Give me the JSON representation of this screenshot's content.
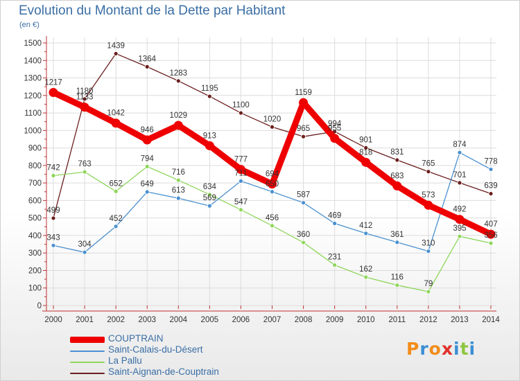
{
  "header": {
    "title": "Evolution du Montant de la Dette par Habitant",
    "unit": "(en €)"
  },
  "logo": {
    "text": "Proxiti",
    "letters": [
      {
        "ch": "P",
        "color": "#f28c1a"
      },
      {
        "ch": "r",
        "color": "#3a8fd4"
      },
      {
        "ch": "o",
        "color": "#f28c1a"
      },
      {
        "ch": "x",
        "color": "#e0322b"
      },
      {
        "ch": "i",
        "color": "#3a8fd4"
      },
      {
        "ch": "t",
        "color": "#8dc63f"
      },
      {
        "ch": "i",
        "color": "#3a8fd4"
      }
    ]
  },
  "chart_data": {
    "type": "line",
    "title": "Evolution du Montant de la Dette par Habitant",
    "ylabel": "(en €)",
    "xlabel": "",
    "x": [
      "2000",
      "2001",
      "2002",
      "2003",
      "2004",
      "2005",
      "2006",
      "2007",
      "2008",
      "2009",
      "2010",
      "2011",
      "2012",
      "2013",
      "2014"
    ],
    "ylim": [
      0,
      1500
    ],
    "yticks": [
      0,
      100,
      200,
      300,
      400,
      500,
      600,
      700,
      800,
      900,
      1000,
      1100,
      1200,
      1300,
      1400,
      1500
    ],
    "grid": true,
    "legend_position": "bottom-left",
    "series": [
      {
        "name": "Saint-Aignan-de-Couptrain",
        "color": "#6b1d1d",
        "values": [
          499,
          1180,
          1439,
          1364,
          1283,
          1195,
          1100,
          1020,
          965,
          994,
          901,
          831,
          765,
          701,
          639
        ]
      },
      {
        "name": "La Pallu",
        "color": "#8ed65a",
        "values": [
          742,
          763,
          652,
          794,
          716,
          634,
          547,
          456,
          360,
          231,
          162,
          116,
          79,
          395,
          356
        ]
      },
      {
        "name": "Saint-Calais-du-Désert",
        "color": "#4a90d0",
        "values": [
          343,
          304,
          452,
          649,
          613,
          569,
          711,
          650,
          587,
          469,
          412,
          361,
          310,
          874,
          778
        ]
      },
      {
        "name": "COUPTRAIN",
        "color": "#ee0000",
        "values": [
          1217,
          1133,
          1042,
          946,
          1029,
          913,
          777,
          694,
          1159,
          955,
          818,
          683,
          573,
          492,
          407
        ]
      }
    ],
    "legend": [
      "COUPTRAIN",
      "Saint-Calais-du-Désert",
      "La Pallu",
      "Saint-Aignan-de-Couptrain"
    ]
  }
}
